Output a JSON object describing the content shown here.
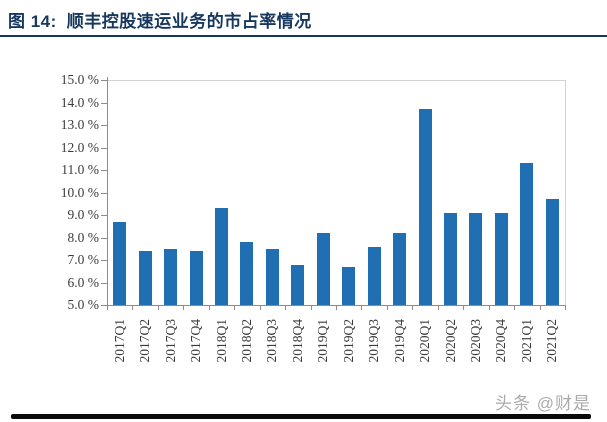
{
  "title": {
    "prefix": "图 14:",
    "text": "顺丰控股速运业务的市占率情况"
  },
  "watermark": "头条 @财是",
  "colors": {
    "title": "#17375E",
    "bar": "#1F6FB2",
    "axis_line": "#8c8c8c",
    "plot_border": "#d3d3d3",
    "tick_label": "#3b3b3b",
    "watermark": "#ABABAB",
    "bottom_bar": "#0a0a0a"
  },
  "chart_data": {
    "type": "bar",
    "title": "顺丰控股速运业务的市占率情况",
    "unit": "%",
    "categories": [
      "2017Q1",
      "2017Q2",
      "2017Q3",
      "2017Q4",
      "2018Q1",
      "2018Q2",
      "2018Q3",
      "2018Q4",
      "2019Q1",
      "2019Q2",
      "2019Q3",
      "2019Q4",
      "2020Q1",
      "2020Q2",
      "2020Q3",
      "2020Q4",
      "2021Q1",
      "2021Q2"
    ],
    "values": [
      8.7,
      7.4,
      7.5,
      7.4,
      9.3,
      7.8,
      7.5,
      6.8,
      8.2,
      6.7,
      7.6,
      8.2,
      13.7,
      9.1,
      9.1,
      9.1,
      11.3,
      9.7
    ],
    "ylim": [
      5.0,
      15.0
    ],
    "y_tick_interval": 1.0,
    "y_tick_labels": [
      "15.0 %",
      "14.0 %",
      "13.0 %",
      "12.0 %",
      "11.0 %",
      "10.0 %",
      "9.0 %",
      "8.0 %",
      "7.0 %",
      "6.0 %",
      "5.0 %"
    ],
    "xlabel": "",
    "ylabel": "",
    "grid": false,
    "legend": "none"
  }
}
